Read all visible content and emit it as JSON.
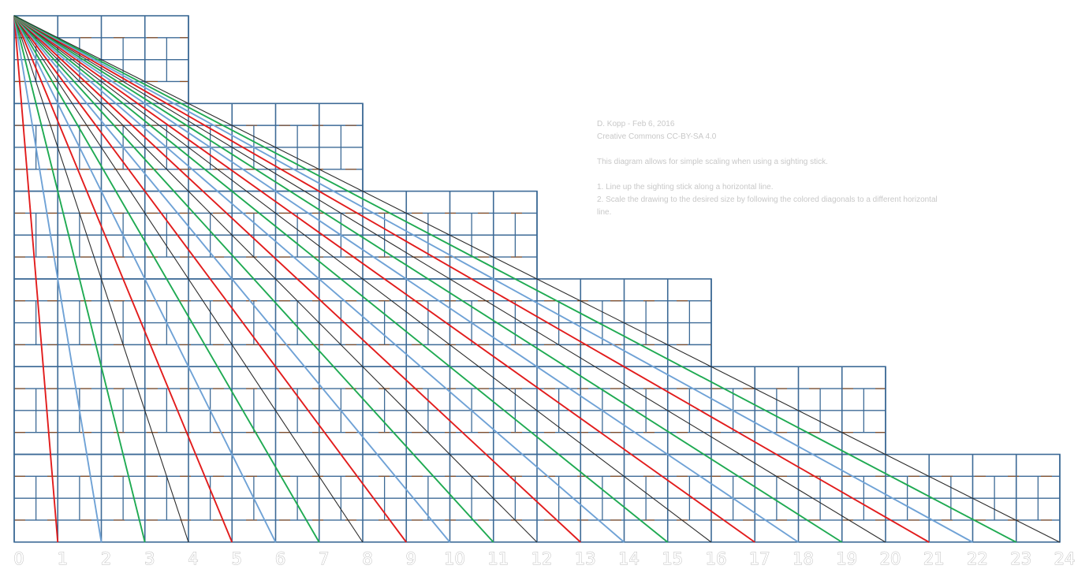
{
  "credits": {
    "author_line": "D. Kopp - Feb 6, 2016",
    "license_line": "Creative Commons CC-BY-SA 4.0"
  },
  "description": "This diagram allows for simple scaling when using a sighting stick.",
  "steps": [
    "1. Line up the sighting stick along a horizontal line.",
    "2. Scale the drawing to the desired size by following the colored diagonals to a different horizontal line."
  ],
  "axis_labels": [
    "0",
    "1",
    "2",
    "3",
    "4",
    "5",
    "6",
    "7",
    "8",
    "9",
    "10",
    "11",
    "12",
    "13",
    "14",
    "15",
    "16",
    "17",
    "18",
    "19",
    "20",
    "21",
    "22",
    "23",
    "24"
  ],
  "colors": {
    "grid": "#3d6a96",
    "brick_seam": "#8b4a1c",
    "red": "#e21c1c",
    "blue": "#6fa2d6",
    "green": "#1faa52",
    "black": "#2c2c2c"
  },
  "diagonal_colors": [
    "red",
    "blue",
    "green",
    "black",
    "red",
    "blue",
    "green",
    "black",
    "red",
    "blue",
    "green",
    "black",
    "red",
    "blue",
    "green",
    "black",
    "red",
    "blue",
    "green",
    "black",
    "red",
    "blue",
    "green",
    "black"
  ]
}
